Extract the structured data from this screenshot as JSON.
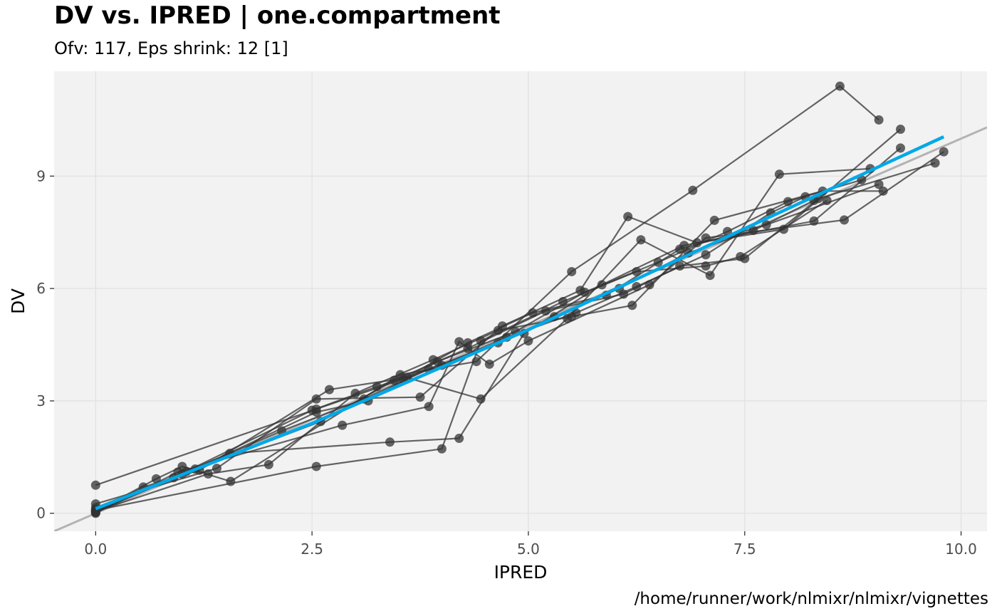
{
  "header": {
    "title": "DV vs. IPRED | one.compartment",
    "subtitle": "Ofv: 117, Eps shrink: 12 [1]"
  },
  "footer": {
    "caption": "/home/runner/work/nlmixr/nlmixr/vignettes"
  },
  "chart_data": {
    "type": "scatter",
    "xlabel": "IPRED",
    "ylabel": "DV",
    "xlim": [
      -0.48,
      10.3
    ],
    "ylim": [
      -0.48,
      11.8
    ],
    "x_ticks": [
      0,
      2.5,
      5,
      7.5,
      10
    ],
    "x_tick_labels": [
      "0.0",
      "2.5",
      "5.0",
      "7.5",
      "10.0"
    ],
    "y_ticks": [
      0,
      3,
      6,
      9
    ],
    "y_tick_labels": [
      "0",
      "3",
      "6",
      "9"
    ],
    "grid": true,
    "legend": "none",
    "colors": {
      "panel": "#f2f2f2",
      "grid": "#e2e2e2",
      "points": "#333333",
      "lines": "#333333",
      "identity_line": "#b3b3b3",
      "smooth": "#00a9e8"
    },
    "identity_line": {
      "slope": 1,
      "intercept": 0
    },
    "smooth_line": {
      "x": [
        0,
        2.5,
        5,
        7.5,
        9.8
      ],
      "y": [
        0.12,
        2.4,
        4.9,
        7.6,
        10.05
      ]
    },
    "subjects": [
      {
        "x": [
          0,
          0.7,
          1.0,
          1.56,
          3.52,
          4.4,
          5.5,
          6.9,
          8.6,
          9.05
        ],
        "y": [
          0.05,
          0.92,
          1.25,
          0.85,
          3.7,
          4.05,
          6.45,
          8.62,
          11.4,
          10.5
        ]
      },
      {
        "x": [
          0,
          0.55,
          1.2,
          2.7,
          3.6,
          4.45,
          5.45,
          6.3,
          7.1,
          7.9,
          8.95
        ],
        "y": [
          0.02,
          0.7,
          1.15,
          3.3,
          3.62,
          3.05,
          5.2,
          7.3,
          6.35,
          9.05,
          9.2
        ]
      },
      {
        "x": [
          0,
          1.4,
          2.55,
          3.75,
          4.7,
          5.6,
          6.15,
          6.95,
          7.95,
          9.3
        ],
        "y": [
          0.25,
          1.2,
          3.05,
          3.1,
          5.0,
          5.95,
          7.92,
          7.22,
          7.58,
          10.25
        ]
      },
      {
        "x": [
          0,
          1.3,
          2.0,
          3.0,
          3.9,
          4.65,
          5.5,
          6.2,
          7.15,
          8.4,
          9.1
        ],
        "y": [
          0.05,
          1.05,
          1.3,
          3.2,
          4.1,
          4.88,
          5.25,
          5.55,
          7.82,
          8.6,
          8.6
        ]
      },
      {
        "x": [
          0,
          0.95,
          2.85,
          3.85,
          4.2,
          4.55,
          5.0,
          6.4,
          7.05,
          8.65,
          9.8
        ],
        "y": [
          0.0,
          1.1,
          2.35,
          2.85,
          4.58,
          3.98,
          4.6,
          6.1,
          7.35,
          7.83,
          9.65
        ]
      },
      {
        "x": [
          0,
          1.55,
          3.4,
          4.2,
          4.95,
          5.85,
          6.8,
          8.3,
          9.3
        ],
        "y": [
          0.1,
          1.6,
          1.9,
          2.0,
          4.8,
          6.1,
          7.15,
          7.8,
          9.75
        ]
      },
      {
        "x": [
          0,
          2.55,
          3.55,
          4.3,
          5.05,
          5.9,
          6.75,
          7.75,
          9.05
        ],
        "y": [
          0.75,
          2.78,
          3.58,
          4.55,
          5.35,
          5.82,
          7.05,
          7.7,
          8.78
        ]
      },
      {
        "x": [
          0,
          2.55,
          4.0,
          4.45,
          5.4,
          6.25,
          7.05,
          7.45,
          8.45
        ],
        "y": [
          0.08,
          1.25,
          1.72,
          4.6,
          5.65,
          6.45,
          6.6,
          6.85,
          8.35
        ]
      },
      {
        "x": [
          0,
          1.0,
          2.6,
          3.45,
          4.3,
          5.2,
          6.1,
          6.75,
          7.5,
          8.35,
          9.7
        ],
        "y": [
          0.15,
          1.05,
          2.45,
          3.55,
          4.4,
          5.4,
          5.85,
          6.6,
          6.8,
          8.4,
          9.35
        ]
      },
      {
        "x": [
          0,
          1.15,
          2.55,
          3.15,
          3.95,
          4.85,
          5.65,
          6.5,
          7.3,
          8.0,
          8.85
        ],
        "y": [
          0.05,
          1.18,
          2.7,
          3.0,
          4.05,
          4.85,
          5.9,
          6.7,
          7.52,
          8.32,
          8.9
        ]
      },
      {
        "x": [
          0,
          1.05,
          2.5,
          3.25,
          4.0,
          4.75,
          5.55,
          6.25,
          7.05,
          7.8,
          8.2
        ],
        "y": [
          0.08,
          1.12,
          2.75,
          3.38,
          3.95,
          4.7,
          5.35,
          6.05,
          6.9,
          8.02,
          8.45
        ]
      },
      {
        "x": [
          0,
          0.9,
          2.15,
          3.1,
          3.85,
          4.65,
          5.3,
          6.05,
          6.85,
          7.6,
          8.3
        ],
        "y": [
          0.03,
          0.95,
          2.2,
          3.05,
          3.85,
          4.55,
          5.25,
          6.0,
          6.95,
          7.55,
          8.35
        ]
      }
    ]
  }
}
